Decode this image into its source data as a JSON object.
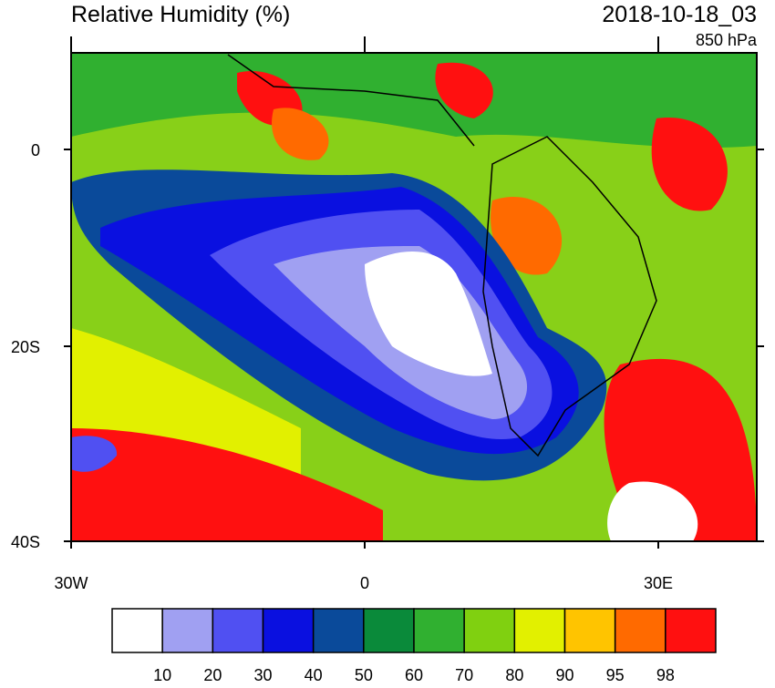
{
  "header": {
    "title": "Relative Humidity (%)",
    "time": "2018-10-18_03",
    "level": "850 hPa"
  },
  "y_axis": {
    "labels": [
      "0",
      "20S",
      "40S"
    ]
  },
  "x_axis": {
    "labels": [
      "30W",
      "0",
      "30E"
    ]
  },
  "colorbar": {
    "colors": [
      "#ffffff",
      "#a0a0f2",
      "#5050f2",
      "#0a10e0",
      "#0a4a9a",
      "#0a8a3a",
      "#30b030",
      "#80d010",
      "#e2f000",
      "#ffc400",
      "#ff6a00",
      "#ff1010"
    ],
    "labels": [
      "10",
      "20",
      "30",
      "40",
      "50",
      "60",
      "70",
      "80",
      "90",
      "95",
      "98"
    ]
  }
}
